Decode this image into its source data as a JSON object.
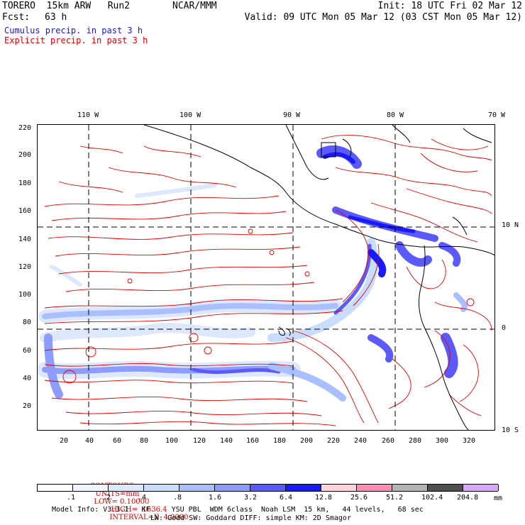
{
  "header": {
    "model": "TORERO  15km ARW   Run2",
    "org": "NCAR/MMM",
    "init": "Init: 18 UTC Fri 02 Mar 12",
    "fcst_label": "Fcst:",
    "fcst_value": "63 h",
    "valid": "Valid: 09 UTC Mon 05 Mar 12 (03 CST Mon 05 Mar 12)",
    "cumulus": "Cumulus precip. in past 3 h",
    "explicit": "Explicit precip. in past 3 h"
  },
  "colors": {
    "cumulus_text": "#1a1ac8",
    "explicit_text": "#e00000",
    "contour": "#e00000"
  },
  "top_lon_labels": [
    "110 W",
    "100 W",
    "90 W",
    "80 W",
    "70 W"
  ],
  "right_lat_labels": [
    "10 N",
    "0",
    "10 S"
  ],
  "left_y_labels": [
    "220",
    "200",
    "180",
    "160",
    "140",
    "120",
    "100",
    "80",
    "60",
    "40",
    "20"
  ],
  "bottom_x_labels": [
    "20",
    "40",
    "60",
    "80",
    "100",
    "120",
    "140",
    "160",
    "180",
    "200",
    "220",
    "240",
    "260",
    "280",
    "300",
    "320"
  ],
  "contour_info": {
    "contours": "CONTOURS:",
    "units": "UNITS=mm",
    "low": "LOW= 0.10000",
    "high": "HIGH=  1636.4",
    "interval": "INTERVAL=X  4.0000"
  },
  "colorbar": {
    "unit": "mm",
    "labels": [
      ".1",
      ".2",
      ".4",
      ".8",
      "1.6",
      "3.2",
      "6.4",
      "12.8",
      "25.6",
      "51.2",
      "102.4",
      "204.8"
    ],
    "colors": [
      "#ffffff",
      "#f0f4ff",
      "#dde8ff",
      "#c8dcff",
      "#aabfff",
      "#8c9cff",
      "#5a5aff",
      "#1a1aff",
      "#ffd4dc",
      "#ff8cb4",
      "#b4b4b4",
      "#505050",
      "#d7a8ff"
    ]
  },
  "model_info": {
    "line1": "Model Info: V3.3.1   KF     YSU PBL  WDM 6class  Noah LSM  15 km,   44 levels,   68 sec",
    "line2": "LW: Godd SW: Goddard DIFF: simple KM: 2D Smagor"
  }
}
